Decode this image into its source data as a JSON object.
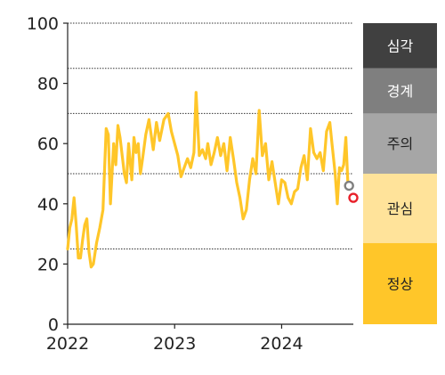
{
  "chart_data": {
    "type": "line",
    "title": "",
    "xlabel": "",
    "ylabel": "",
    "ylim": [
      0,
      100
    ],
    "xlim": [
      2022.0,
      2024.67
    ],
    "y_ticks": [
      "0",
      "20",
      "40",
      "60",
      "80",
      "100"
    ],
    "x_ticks": [
      {
        "label": "2022",
        "value": 2022.0
      },
      {
        "label": "2023",
        "value": 2023.0
      },
      {
        "label": "2024",
        "value": 2024.0
      }
    ],
    "gridlines_y": [
      25,
      50,
      70,
      85,
      100
    ],
    "line_color": "#FFC629",
    "series": [
      {
        "values": [
          [
            2022.0,
            25
          ],
          [
            2022.02,
            32
          ],
          [
            2022.04,
            35
          ],
          [
            2022.06,
            42
          ],
          [
            2022.08,
            33
          ],
          [
            2022.1,
            22
          ],
          [
            2022.12,
            22
          ],
          [
            2022.14,
            28
          ],
          [
            2022.16,
            33
          ],
          [
            2022.18,
            35
          ],
          [
            2022.2,
            24
          ],
          [
            2022.22,
            19
          ],
          [
            2022.24,
            20
          ],
          [
            2022.27,
            27
          ],
          [
            2022.3,
            32
          ],
          [
            2022.33,
            38
          ],
          [
            2022.36,
            65
          ],
          [
            2022.38,
            63
          ],
          [
            2022.4,
            40
          ],
          [
            2022.43,
            60
          ],
          [
            2022.45,
            53
          ],
          [
            2022.47,
            66
          ],
          [
            2022.49,
            62
          ],
          [
            2022.51,
            56
          ],
          [
            2022.53,
            50
          ],
          [
            2022.55,
            47
          ],
          [
            2022.57,
            60
          ],
          [
            2022.6,
            48
          ],
          [
            2022.62,
            62
          ],
          [
            2022.64,
            57
          ],
          [
            2022.66,
            60
          ],
          [
            2022.68,
            50
          ],
          [
            2022.7,
            55
          ],
          [
            2022.73,
            63
          ],
          [
            2022.76,
            68
          ],
          [
            2022.8,
            58
          ],
          [
            2022.83,
            67
          ],
          [
            2022.86,
            61
          ],
          [
            2022.9,
            68
          ],
          [
            2022.94,
            70
          ],
          [
            2022.97,
            64
          ],
          [
            2023.0,
            60
          ],
          [
            2023.03,
            56
          ],
          [
            2023.06,
            49
          ],
          [
            2023.09,
            52
          ],
          [
            2023.12,
            55
          ],
          [
            2023.15,
            52
          ],
          [
            2023.18,
            57
          ],
          [
            2023.2,
            77
          ],
          [
            2023.23,
            56
          ],
          [
            2023.26,
            58
          ],
          [
            2023.29,
            55
          ],
          [
            2023.31,
            60
          ],
          [
            2023.34,
            53
          ],
          [
            2023.37,
            57
          ],
          [
            2023.4,
            62
          ],
          [
            2023.43,
            56
          ],
          [
            2023.46,
            60
          ],
          [
            2023.49,
            51
          ],
          [
            2023.52,
            62
          ],
          [
            2023.55,
            55
          ],
          [
            2023.58,
            47
          ],
          [
            2023.61,
            42
          ],
          [
            2023.64,
            35
          ],
          [
            2023.67,
            38
          ],
          [
            2023.7,
            48
          ],
          [
            2023.73,
            55
          ],
          [
            2023.76,
            50
          ],
          [
            2023.79,
            71
          ],
          [
            2023.82,
            56
          ],
          [
            2023.85,
            60
          ],
          [
            2023.88,
            48
          ],
          [
            2023.91,
            54
          ],
          [
            2023.94,
            47
          ],
          [
            2023.97,
            40
          ],
          [
            2024.0,
            48
          ],
          [
            2024.03,
            47
          ],
          [
            2024.06,
            42
          ],
          [
            2024.09,
            40
          ],
          [
            2024.12,
            44
          ],
          [
            2024.15,
            45
          ],
          [
            2024.18,
            52
          ],
          [
            2024.21,
            56
          ],
          [
            2024.24,
            48
          ],
          [
            2024.27,
            65
          ],
          [
            2024.3,
            57
          ],
          [
            2024.33,
            55
          ],
          [
            2024.36,
            57
          ],
          [
            2024.39,
            51
          ],
          [
            2024.42,
            64
          ],
          [
            2024.45,
            67
          ],
          [
            2024.47,
            60
          ],
          [
            2024.5,
            50
          ],
          [
            2024.52,
            40
          ],
          [
            2024.54,
            52
          ],
          [
            2024.56,
            51
          ],
          [
            2024.58,
            53
          ],
          [
            2024.6,
            62
          ],
          [
            2024.62,
            46
          ]
        ]
      }
    ],
    "markers": [
      {
        "x": 2024.63,
        "y": 46,
        "stroke": "#808080"
      },
      {
        "x": 2024.67,
        "y": 42,
        "stroke": "#E8202A"
      }
    ],
    "bands": [
      {
        "label": "정상",
        "from": 0,
        "to": 27,
        "fill": "#FFC629",
        "text_color": "#222222"
      },
      {
        "label": "관심",
        "from": 27,
        "to": 50,
        "fill": "#FFE39A",
        "text_color": "#222222"
      },
      {
        "label": "주의",
        "from": 50,
        "to": 70,
        "fill": "#A6A6A6",
        "text_color": "#222222"
      },
      {
        "label": "경계",
        "from": 70,
        "to": 85,
        "fill": "#7F7F7F",
        "text_color": "#ffffff"
      },
      {
        "label": "심각",
        "from": 85,
        "to": 100,
        "fill": "#404040",
        "text_color": "#ffffff"
      }
    ]
  }
}
